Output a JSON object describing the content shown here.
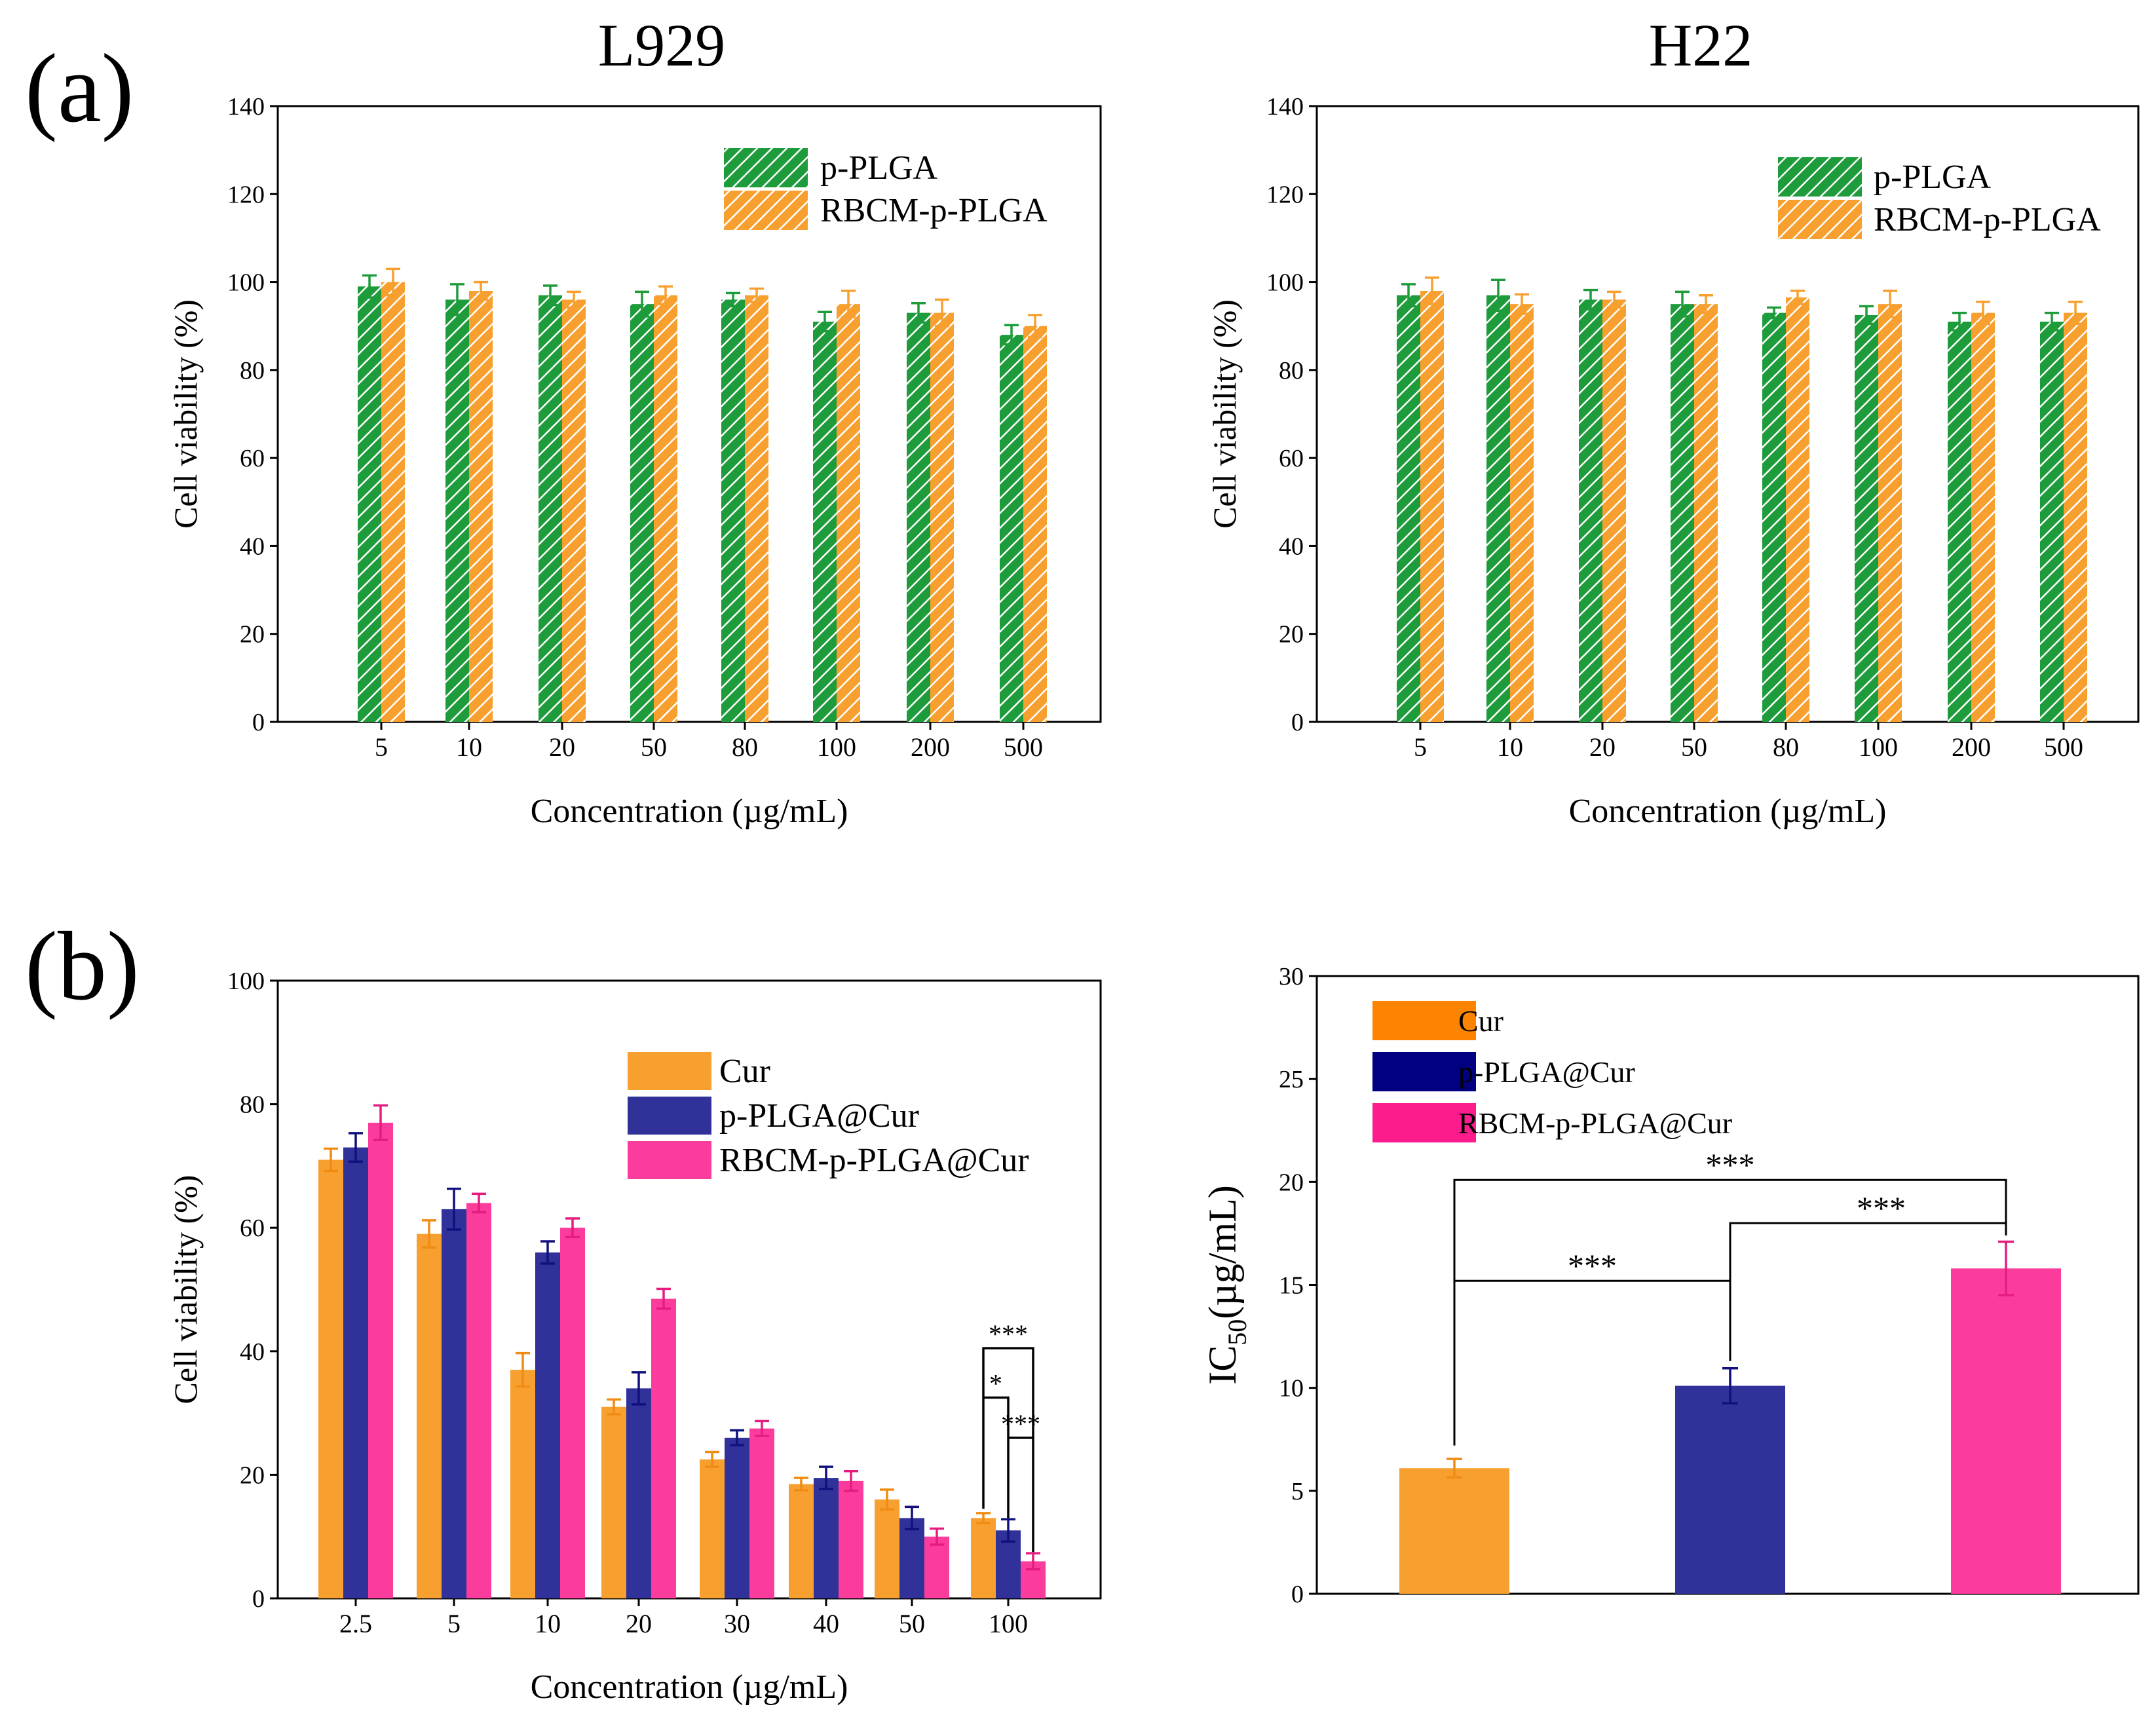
{
  "panel_labels": {
    "a": "(a)",
    "b": "(b)"
  },
  "colors": {
    "green": "#1e9c3c",
    "orange": "#f7a030",
    "navy": "#30329a",
    "pink": "#fc3c9c",
    "pink_err": "#e41c80",
    "navy_err": "#10107e",
    "orange_err": "#f08c14",
    "ic_orange": "#f7a030",
    "ic_navy": "#30329a",
    "ic_pink": "#fc3c9c",
    "legend_orange_ic": "#fc8400",
    "legend_navy_ic": "#000080",
    "legend_pink_ic": "#fc1c8c"
  },
  "chart_data": [
    {
      "id": "l929",
      "type": "bar",
      "title": "L929",
      "xlabel": "Concentration (µg/mL)",
      "ylabel": "Cell viability (%)",
      "ylim": [
        0,
        140
      ],
      "yticks": [
        "0",
        "20",
        "40",
        "60",
        "80",
        "100",
        "120",
        "140"
      ],
      "categories": [
        "5",
        "10",
        "20",
        "50",
        "80",
        "100",
        "200",
        "500"
      ],
      "legend_position": "top-right",
      "series": [
        {
          "name": "p-PLGA",
          "values": [
            99,
            96,
            97,
            95,
            96,
            91,
            93,
            88
          ],
          "errors": [
            2.5,
            3.5,
            2.2,
            2.8,
            1.5,
            2.2,
            2.2,
            2.2
          ]
        },
        {
          "name": "RBCM-p-PLGA",
          "values": [
            100,
            98,
            96,
            97,
            97,
            95,
            93,
            90
          ],
          "errors": [
            3,
            2,
            1.8,
            2,
            1.5,
            3,
            3,
            2.5
          ]
        }
      ]
    },
    {
      "id": "h22",
      "type": "bar",
      "title": "H22",
      "xlabel": "Concentration (µg/mL)",
      "ylabel": "Cell viability (%)",
      "ylim": [
        0,
        140
      ],
      "yticks": [
        "0",
        "20",
        "40",
        "60",
        "80",
        "100",
        "120",
        "140"
      ],
      "categories": [
        "5",
        "10",
        "20",
        "50",
        "80",
        "100",
        "200",
        "500"
      ],
      "legend_position": "top-right",
      "series": [
        {
          "name": "p-PLGA",
          "values": [
            97,
            97,
            96,
            95,
            93,
            92.5,
            91,
            91
          ],
          "errors": [
            2.5,
            3.5,
            2.2,
            2.8,
            1.2,
            2,
            2,
            2
          ]
        },
        {
          "name": "RBCM-p-PLGA",
          "values": [
            98,
            95,
            96,
            95,
            96.5,
            95,
            93,
            93
          ],
          "errors": [
            3,
            2.2,
            1.8,
            2,
            1.5,
            3,
            2.5,
            2.5
          ]
        }
      ]
    },
    {
      "id": "cur_viability",
      "type": "bar",
      "xlabel": "Concentration (µg/mL)",
      "ylabel": "Cell viability (%)",
      "ylim": [
        0,
        100
      ],
      "yticks": [
        "0",
        "20",
        "40",
        "60",
        "80",
        "100"
      ],
      "categories": [
        "2.5",
        "5",
        "10",
        "20",
        "30",
        "40",
        "50",
        "100"
      ],
      "legend_position": "top-right",
      "series": [
        {
          "name": "Cur",
          "values": [
            71,
            59,
            37,
            31,
            22.5,
            18.5,
            16,
            13
          ],
          "errors": [
            1.8,
            2.2,
            2.7,
            1.2,
            1.2,
            1.0,
            1.6,
            0.8
          ]
        },
        {
          "name": "p-PLGA@Cur",
          "values": [
            73,
            63,
            56,
            34,
            26,
            19.5,
            13,
            11
          ],
          "errors": [
            2.3,
            3.3,
            1.8,
            2.6,
            1.2,
            1.8,
            1.8,
            1.8
          ]
        },
        {
          "name": "RBCM-p-PLGA@Cur",
          "values": [
            77,
            64,
            60,
            48.5,
            27.5,
            19,
            10,
            6
          ],
          "errors": [
            2.8,
            1.5,
            1.5,
            1.6,
            1.2,
            1.6,
            1.3,
            1.3
          ]
        }
      ],
      "significance": [
        {
          "label": "*"
        },
        {
          "label": "***"
        },
        {
          "label": "***"
        }
      ]
    },
    {
      "id": "ic50",
      "type": "bar",
      "ylabel_main": "IC",
      "ylabel_sub": "50",
      "ylabel_rest": "(µg/mL)",
      "ylim": [
        0,
        30
      ],
      "yticks": [
        "0",
        "5",
        "10",
        "15",
        "20",
        "25",
        "30"
      ],
      "categories": [
        "Cur",
        "p-PLGA@Cur",
        "RBCM-p-PLGA@Cur"
      ],
      "legend_position": "top-left",
      "series": [
        {
          "name": "IC50",
          "values": [
            6.1,
            10.1,
            15.8
          ],
          "errors": [
            0.45,
            0.85,
            1.3
          ]
        }
      ],
      "significance": [
        {
          "label": "***"
        },
        {
          "label": "***"
        },
        {
          "label": "***"
        }
      ]
    }
  ]
}
